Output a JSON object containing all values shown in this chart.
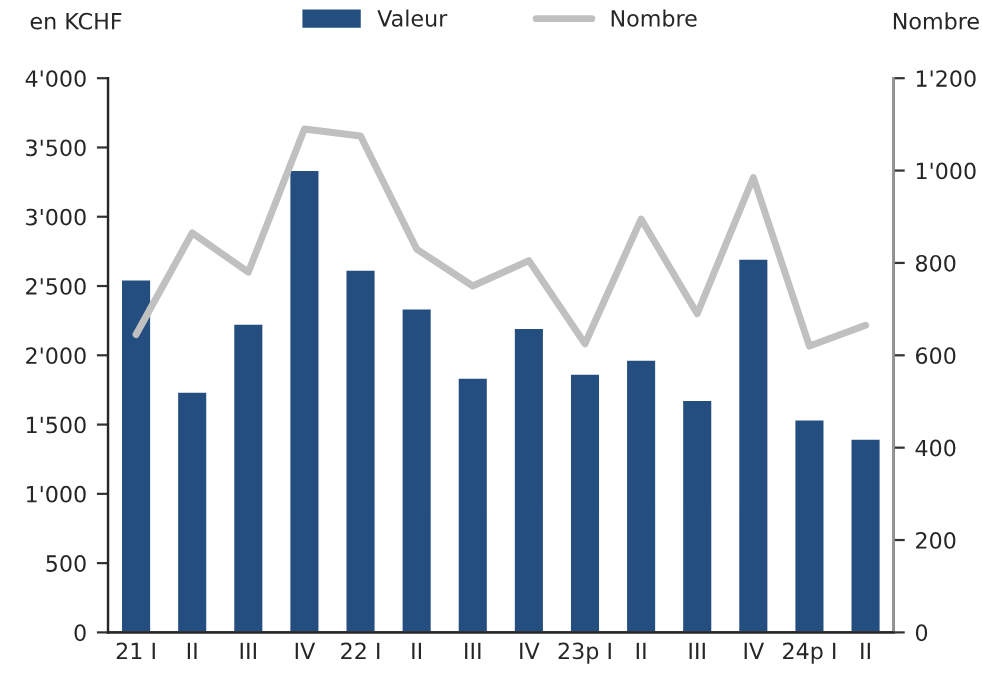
{
  "chart_data": {
    "type": "bar",
    "ylabel": "en KCHF",
    "y2label": "Nombre",
    "categories": [
      "21 I",
      "II",
      "III",
      "IV",
      "22 I",
      "II",
      "III",
      "IV",
      "23p I",
      "II",
      "III",
      "IV",
      "24p I",
      "II"
    ],
    "series": [
      {
        "name": "Valeur",
        "color": "#254e80",
        "values": [
          2550,
          1740,
          2230,
          3340,
          2620,
          2340,
          1840,
          2200,
          1870,
          1970,
          1680,
          2700,
          1540,
          1400
        ]
      },
      {
        "name": "Nombre",
        "type": "line",
        "axis": "y2",
        "color": "#c0c0c0",
        "values": [
          645,
          865,
          780,
          1090,
          1075,
          830,
          750,
          805,
          625,
          895,
          690,
          985,
          620,
          665
        ]
      }
    ],
    "ylim": [
      0,
      4000
    ],
    "yticks": [
      0,
      500,
      {
        "value": 1000,
        "label": "1'000"
      },
      {
        "value": 1500,
        "label": "1'500"
      },
      {
        "value": 2000,
        "label": "2'000"
      },
      {
        "value": 2500,
        "label": "2'500"
      },
      {
        "value": 3000,
        "label": "3'000"
      },
      {
        "value": 3500,
        "label": "3'500"
      },
      {
        "value": 4000,
        "label": "4'000"
      }
    ],
    "y2lim": [
      0,
      1200
    ],
    "y2ticks": [
      0,
      200,
      400,
      600,
      800,
      {
        "value": 1000,
        "label": "1'000"
      },
      {
        "value": 1200,
        "label": "1'200"
      }
    ],
    "legend": "top",
    "grid": false
  }
}
